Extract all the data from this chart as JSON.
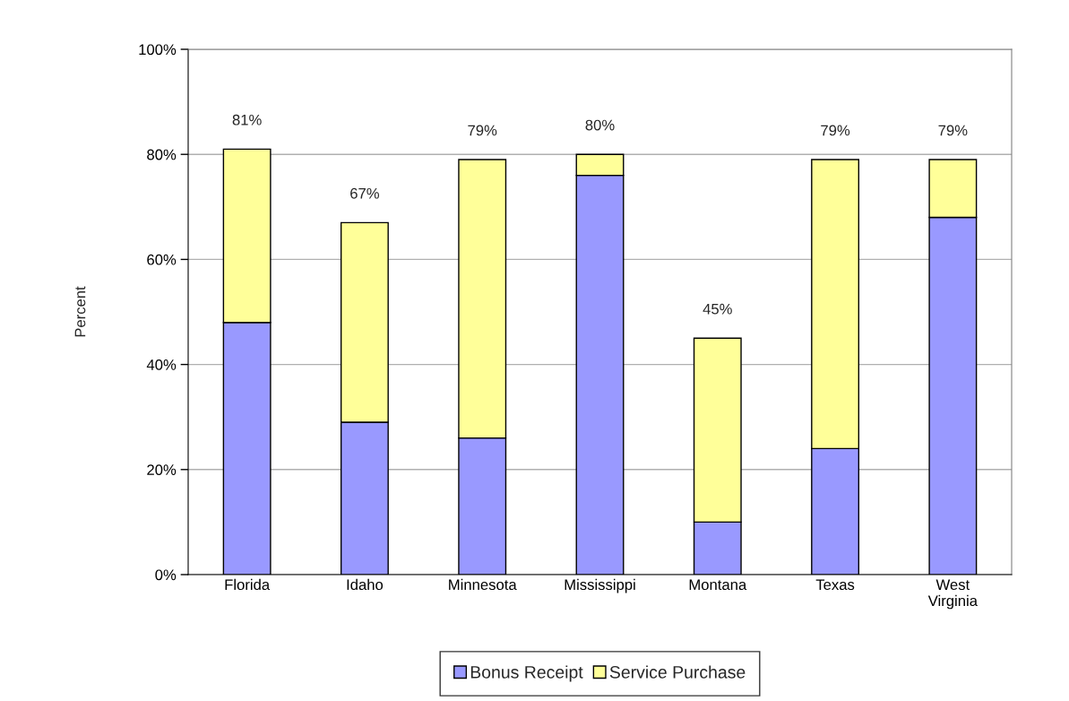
{
  "chart_data": {
    "type": "bar",
    "stacked": true,
    "ylabel": "Percent",
    "categories": [
      "Florida",
      "Idaho",
      "Minnesota",
      "Mississippi",
      "Montana",
      "Texas",
      "West\nVirginia"
    ],
    "series": [
      {
        "name": "Bonus Receipt",
        "color": "#9999ff",
        "values": [
          48,
          29,
          26,
          76,
          10,
          24,
          68
        ]
      },
      {
        "name": "Service Purchase",
        "color": "#ffff99",
        "values": [
          33,
          38,
          53,
          4,
          35,
          55,
          11
        ]
      }
    ],
    "totals": [
      "81%",
      "67%",
      "79%",
      "80%",
      "45%",
      "79%",
      "79%"
    ],
    "ylim": [
      0,
      100
    ],
    "yticks": [
      {
        "value": 0,
        "label": "0%"
      },
      {
        "value": 20,
        "label": "20%"
      },
      {
        "value": 40,
        "label": "40%"
      },
      {
        "value": 60,
        "label": "60%"
      },
      {
        "value": 80,
        "label": "80%"
      },
      {
        "value": 100,
        "label": "100%"
      }
    ],
    "grid": "y",
    "legend": "bottom"
  }
}
